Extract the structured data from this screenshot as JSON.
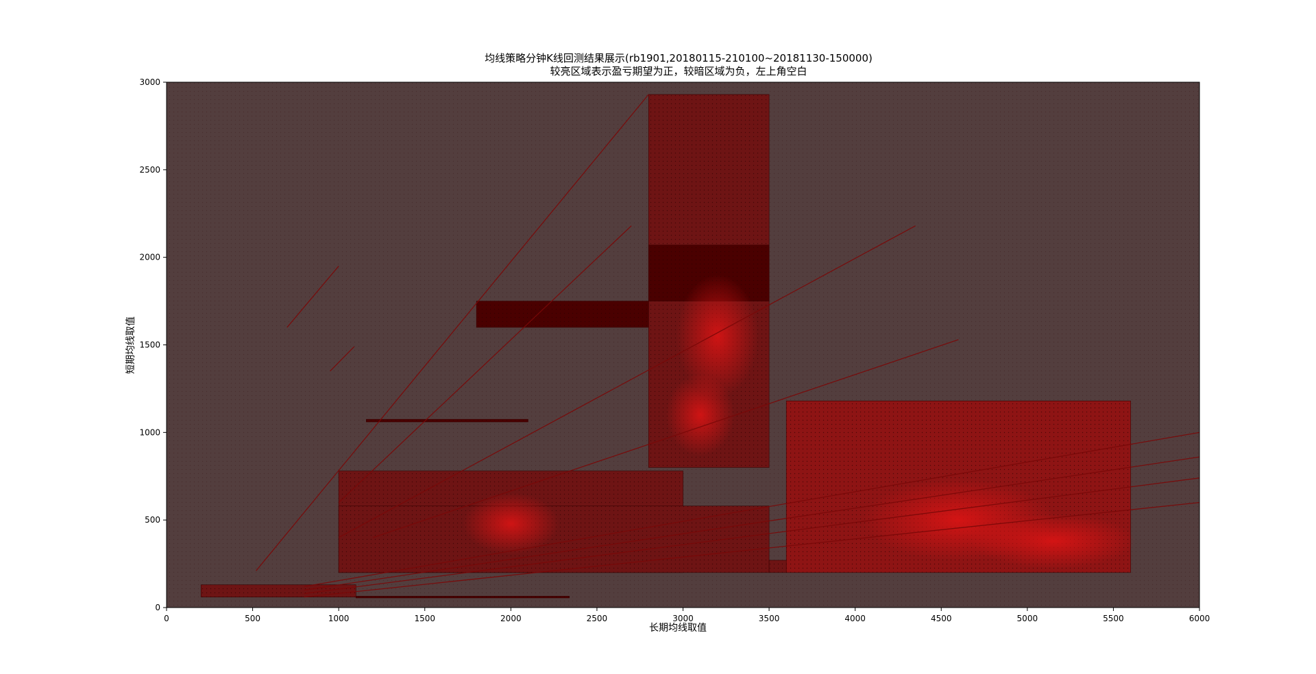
{
  "chart_data": {
    "type": "heatmap",
    "title": "均线策略分钟K线回测结果展示(rb1901,20180115-210100~20181130-150000)",
    "subtitle": "较亮区域表示盈亏期望为正，较暗区域为负，左上角空白",
    "xlabel": "长期均线取值",
    "ylabel": "短期均线取值",
    "xlim": [
      0,
      6000
    ],
    "ylim": [
      0,
      3000
    ],
    "xticks": [
      0,
      500,
      1000,
      1500,
      2000,
      2500,
      3000,
      3500,
      4000,
      4500,
      5000,
      5500,
      6000
    ],
    "yticks": [
      0,
      500,
      1000,
      1500,
      2000,
      2500,
      3000
    ],
    "grid": false,
    "background_color": "#533e3e",
    "colors": {
      "bright": "#d01010",
      "mid": "#8a1010",
      "dark": "#4a0000"
    },
    "regions": [
      {
        "x0": 1000,
        "x1": 3000,
        "y0": 200,
        "y1": 780,
        "level": "mixed"
      },
      {
        "x0": 1000,
        "x1": 3500,
        "y0": 200,
        "y1": 580,
        "level": "mixed"
      },
      {
        "x0": 2800,
        "x1": 3500,
        "y0": 800,
        "y1": 2930,
        "level": "mixed"
      },
      {
        "x0": 2800,
        "x1": 3500,
        "y0": 1750,
        "y1": 2070,
        "level": "dark"
      },
      {
        "x0": 1800,
        "x1": 2800,
        "y0": 1600,
        "y1": 1750,
        "level": "dark"
      },
      {
        "x0": 3600,
        "x1": 5600,
        "y0": 200,
        "y1": 1180,
        "level": "bright"
      },
      {
        "x0": 3500,
        "x1": 3600,
        "y0": 200,
        "y1": 270,
        "level": "mixed"
      },
      {
        "x0": 200,
        "x1": 1100,
        "y0": 60,
        "y1": 130,
        "level": "mixed"
      },
      {
        "x0": 1100,
        "x1": 2340,
        "y0": 55,
        "y1": 65,
        "level": "dark"
      },
      {
        "x0": 1160,
        "x1": 2100,
        "y0": 1060,
        "y1": 1075,
        "level": "dark"
      }
    ],
    "diagonals": [
      {
        "x0": 520,
        "y0": 210,
        "x1": 2800,
        "y1": 2930
      },
      {
        "x0": 1000,
        "y0": 600,
        "x1": 2700,
        "y1": 2180
      },
      {
        "x0": 1000,
        "y0": 400,
        "x1": 4350,
        "y1": 2180
      },
      {
        "x0": 1200,
        "y0": 400,
        "x1": 4600,
        "y1": 1530
      },
      {
        "x0": 800,
        "y0": 120,
        "x1": 6000,
        "y1": 1000
      },
      {
        "x0": 800,
        "y0": 100,
        "x1": 6000,
        "y1": 860
      },
      {
        "x0": 800,
        "y0": 80,
        "x1": 6000,
        "y1": 740
      },
      {
        "x0": 800,
        "y0": 60,
        "x1": 6000,
        "y1": 600
      },
      {
        "x0": 700,
        "y0": 1600,
        "x1": 1000,
        "y1": 1950
      },
      {
        "x0": 950,
        "y0": 1350,
        "x1": 1090,
        "y1": 1490
      }
    ]
  }
}
